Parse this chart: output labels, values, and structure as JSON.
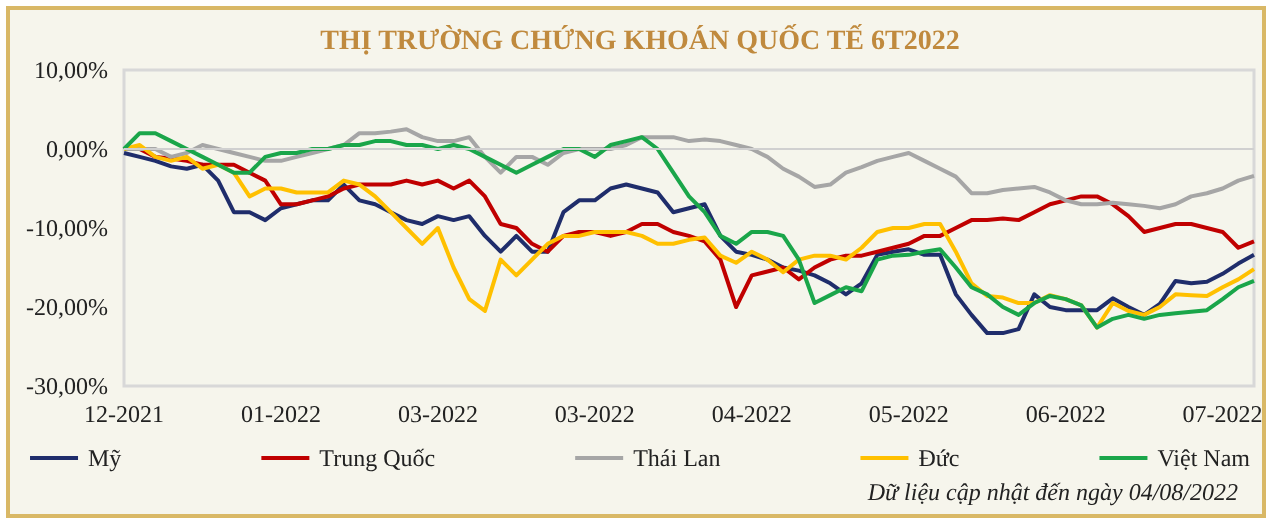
{
  "chart_data": {
    "type": "line",
    "title": "THỊ TRƯỜNG CHỨNG KHOÁN QUỐC TẾ 6T2022",
    "categories": [
      "12-2021",
      null,
      null,
      null,
      null,
      null,
      null,
      null,
      null,
      null,
      "01-2022",
      null,
      null,
      null,
      null,
      null,
      null,
      null,
      null,
      null,
      "03-2022",
      null,
      null,
      null,
      null,
      null,
      null,
      null,
      null,
      null,
      "03-2022",
      null,
      null,
      null,
      null,
      null,
      null,
      null,
      null,
      null,
      "04-2022",
      null,
      null,
      null,
      null,
      null,
      null,
      null,
      null,
      null,
      "05-2022",
      null,
      null,
      null,
      null,
      null,
      null,
      null,
      null,
      null,
      "06-2022",
      null,
      null,
      null,
      null,
      null,
      null,
      null,
      null,
      null,
      "07-2022",
      null,
      null
    ],
    "series": [
      {
        "name": "Mỹ",
        "color": "#1f2d6b",
        "values": [
          -0.5,
          -1,
          -1.5,
          -2.2,
          -2.5,
          -2,
          -4,
          -8,
          -8,
          -9,
          -7.5,
          -7,
          -6.5,
          -6.5,
          -4.5,
          -6.5,
          -7,
          -8,
          -9,
          -9.5,
          -8.5,
          -9,
          -8.5,
          -11,
          -13,
          -11,
          -13,
          -13,
          -8,
          -6.5,
          -6.5,
          -5,
          -4.5,
          -5,
          -5.5,
          -8,
          -7.5,
          -7,
          -11,
          -13,
          -13.4,
          -14,
          -15,
          -15.4,
          -16,
          -17,
          -18.4,
          -17,
          -13.4,
          -13,
          -12.7,
          -13.4,
          -13.4,
          -18.4,
          -21,
          -23.3,
          -23.3,
          -22.8,
          -18.4,
          -20,
          -20.4,
          -20.4,
          -20.4,
          -18.9,
          -20,
          -21,
          -19.6,
          -16.7,
          -17,
          -16.8,
          -15.8,
          -14.5,
          -13.4
        ]
      },
      {
        "name": "Trung Quốc",
        "color": "#c00000",
        "values": [
          0,
          0,
          -1,
          -1.2,
          -1.5,
          -2,
          -2,
          -2,
          -3,
          -4,
          -7,
          -7,
          -6.5,
          -6,
          -5,
          -4.5,
          -4.5,
          -4.5,
          -4,
          -4.5,
          -4,
          -5,
          -4,
          -6,
          -9.5,
          -10,
          -12,
          -13,
          -11,
          -10.5,
          -10.5,
          -11,
          -10.5,
          -9.5,
          -9.5,
          -10.5,
          -11,
          -11.7,
          -14,
          -20,
          -16,
          -15.5,
          -15,
          -16.5,
          -15,
          -14,
          -13.5,
          -13.5,
          -13,
          -12.5,
          -12,
          -11,
          -11,
          -10,
          -9,
          -9,
          -8.8,
          -9,
          -8,
          -7,
          -6.5,
          -6,
          -6,
          -7,
          -8.5,
          -10.5,
          -10,
          -9.5,
          -9.5,
          -10,
          -10.5,
          -12.5,
          -11.7
        ]
      },
      {
        "name": "Thái Lan",
        "color": "#a6a6a6",
        "values": [
          0,
          0,
          0,
          -1,
          -0.5,
          0.5,
          0,
          -0.5,
          -1,
          -1.5,
          -1.5,
          -1,
          -0.5,
          0,
          0.5,
          2,
          2,
          2.2,
          2.5,
          1.5,
          1,
          1,
          1.5,
          -1,
          -3,
          -1,
          -1,
          -2,
          -0.5,
          0,
          0,
          0,
          0.5,
          1.5,
          1.5,
          1.5,
          1,
          1.2,
          1,
          0.5,
          0,
          -1,
          -2.5,
          -3.5,
          -4.8,
          -4.5,
          -3,
          -2.3,
          -1.5,
          -1,
          -0.5,
          -1.5,
          -2.5,
          -3.5,
          -5.6,
          -5.6,
          -5.2,
          -5,
          -4.8,
          -5.5,
          -6.5,
          -7,
          -7,
          -6.8,
          -7,
          -7.2,
          -7.5,
          -7,
          -6,
          -5.6,
          -5,
          -4,
          -3.4
        ]
      },
      {
        "name": "Đức",
        "color": "#ffc000",
        "values": [
          0,
          0.5,
          -1,
          -1.5,
          -1,
          -2.5,
          -2,
          -3,
          -6,
          -5,
          -5,
          -5.5,
          -5.5,
          -5.5,
          -4,
          -4.5,
          -6,
          -8,
          -10,
          -12,
          -10,
          -15,
          -19,
          -20.5,
          -14,
          -16,
          -14,
          -12,
          -11,
          -11,
          -10.5,
          -10.5,
          -10.5,
          -11,
          -12,
          -12,
          -11.5,
          -11.2,
          -13.5,
          -14.4,
          -13,
          -14,
          -15.6,
          -14,
          -13.5,
          -13.5,
          -14,
          -12.5,
          -10.5,
          -10,
          -10,
          -9.5,
          -9.5,
          -13,
          -17,
          -18.6,
          -18.8,
          -19.5,
          -19.5,
          -18.5,
          -19,
          -19.8,
          -22.6,
          -19.5,
          -20.5,
          -21,
          -20,
          -18.4,
          -18.5,
          -18.6,
          -17.5,
          -16.5,
          -15.2
        ]
      },
      {
        "name": "Việt Nam",
        "color": "#1aa64a",
        "values": [
          0,
          2,
          2,
          1,
          0,
          -1,
          -2,
          -3,
          -3,
          -1,
          -0.5,
          -0.5,
          0,
          0,
          0.5,
          0.5,
          1,
          1,
          0.5,
          0.5,
          0,
          0.5,
          0,
          -1,
          -2,
          -3,
          -2,
          -1,
          0,
          0,
          -1,
          0.5,
          1,
          1.5,
          0,
          -3,
          -6,
          -8,
          -11,
          -12,
          -10.5,
          -10.5,
          -11,
          -14,
          -19.5,
          -18.5,
          -17.5,
          -18,
          -14,
          -13.5,
          -13.4,
          -13,
          -12.7,
          -15,
          -17.5,
          -18.4,
          -20,
          -21,
          -19.5,
          -18.6,
          -19,
          -19.8,
          -22.6,
          -21.5,
          -21,
          -21.5,
          -21,
          -20.8,
          -20.6,
          -20.4,
          -19,
          -17.5,
          -16.7
        ]
      }
    ],
    "ylim": [
      -30,
      10
    ],
    "yticks": [
      {
        "value": -30,
        "label": "-30,00%"
      },
      {
        "value": -20,
        "label": "-20,00%"
      },
      {
        "value": -10,
        "label": "-10,00%"
      },
      {
        "value": 0,
        "label": "0,00%"
      },
      {
        "value": 10,
        "label": "10,00%"
      }
    ],
    "ref_lines": [
      {
        "axis": "y",
        "value": 0,
        "color": "#d0d0d0"
      }
    ],
    "legend": "bottom",
    "marker": "none",
    "line_style": "solid",
    "annotations": [
      "Dữ liệu cập nhật đến ngày 04/08/2022"
    ]
  }
}
